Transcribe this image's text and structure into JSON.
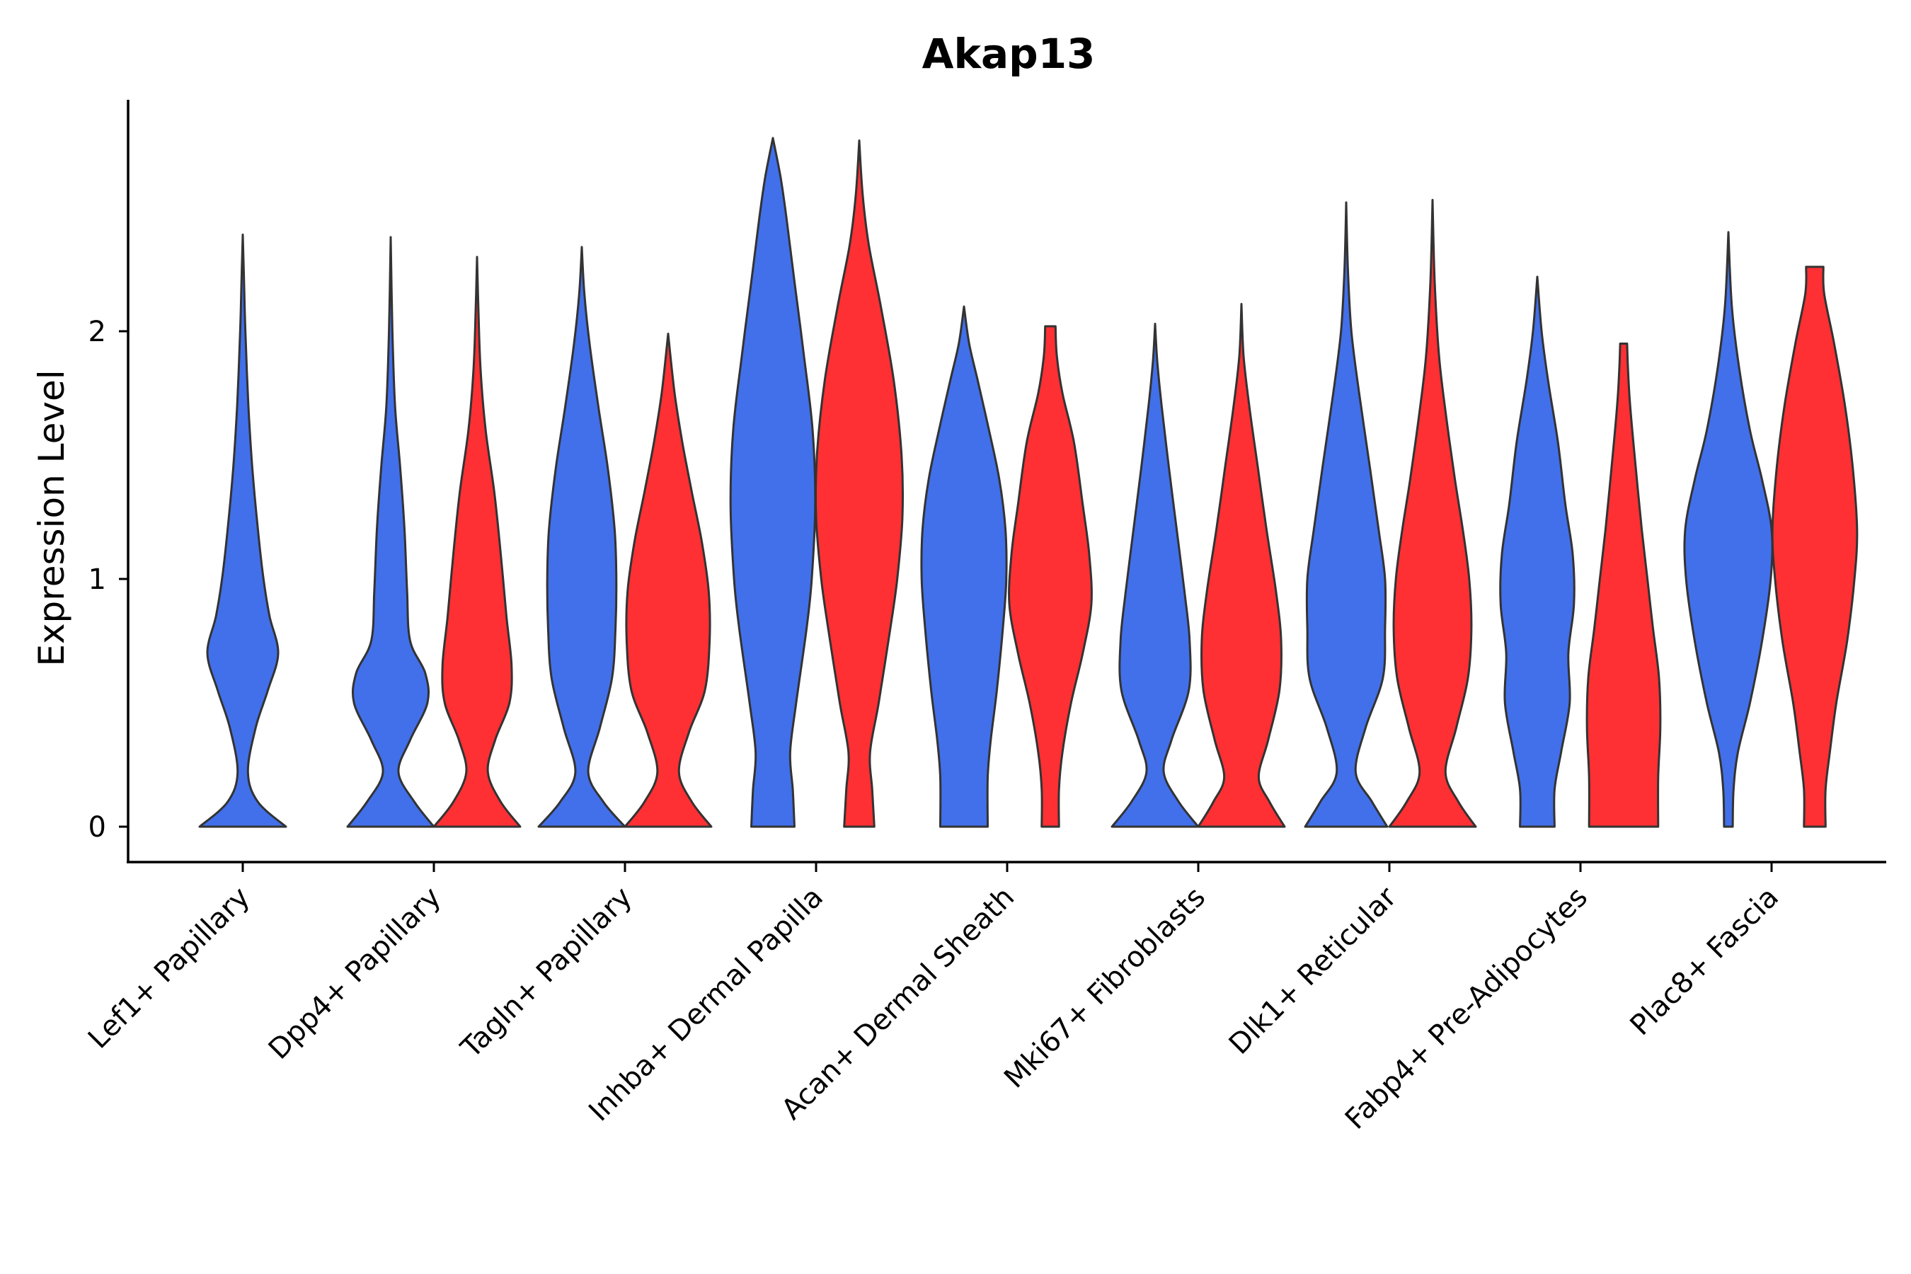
{
  "chart_data": {
    "type": "violin",
    "title": "Akap13",
    "xlabel": "",
    "ylabel": "Expression Level",
    "ylim": [
      -0.14,
      2.94
    ],
    "yticks": [
      0,
      1,
      2
    ],
    "grid": false,
    "legend": "none",
    "colors": {
      "group1": "#4270EB",
      "group2": "#FF3033",
      "outline": "#333333"
    },
    "categories": [
      "Lef1+ Papillary",
      "Dpp4+ Papillary",
      "Tagln+ Papillary",
      "Inhba+ Dermal Papilla",
      "Acan+ Dermal Sheath",
      "Mki67+ Fibroblasts",
      "Dlk1+ Reticular",
      "Fabp4+ Pre-Adipocytes",
      "Plac8+ Fascia"
    ],
    "series": [
      {
        "name": "group1",
        "violins": [
          {
            "max": 2.39,
            "profile": [
              [
                0,
                1.0
              ],
              [
                0.1,
                0.35
              ],
              [
                0.22,
                0.12
              ],
              [
                0.4,
                0.3
              ],
              [
                0.55,
                0.58
              ],
              [
                0.7,
                0.82
              ],
              [
                0.85,
                0.62
              ],
              [
                1.0,
                0.48
              ],
              [
                1.2,
                0.35
              ],
              [
                1.45,
                0.22
              ],
              [
                1.7,
                0.13
              ],
              [
                2.0,
                0.06
              ],
              [
                2.2,
                0.03
              ],
              [
                2.39,
                0.0
              ]
            ]
          },
          {
            "max": 2.38,
            "profile": [
              [
                0,
                1.0
              ],
              [
                0.1,
                0.55
              ],
              [
                0.22,
                0.18
              ],
              [
                0.35,
                0.45
              ],
              [
                0.5,
                0.85
              ],
              [
                0.62,
                0.8
              ],
              [
                0.75,
                0.45
              ],
              [
                0.95,
                0.38
              ],
              [
                1.2,
                0.32
              ],
              [
                1.45,
                0.22
              ],
              [
                1.7,
                0.1
              ],
              [
                2.0,
                0.04
              ],
              [
                2.38,
                0.0
              ]
            ]
          },
          {
            "max": 2.34,
            "profile": [
              [
                0,
                1.0
              ],
              [
                0.1,
                0.5
              ],
              [
                0.22,
                0.15
              ],
              [
                0.4,
                0.42
              ],
              [
                0.6,
                0.7
              ],
              [
                0.8,
                0.78
              ],
              [
                1.0,
                0.8
              ],
              [
                1.2,
                0.76
              ],
              [
                1.45,
                0.6
              ],
              [
                1.7,
                0.38
              ],
              [
                1.95,
                0.18
              ],
              [
                2.15,
                0.06
              ],
              [
                2.34,
                0.0
              ]
            ]
          },
          {
            "max": 2.78,
            "profile": [
              [
                0,
                0.5
              ],
              [
                0.15,
                0.46
              ],
              [
                0.3,
                0.4
              ],
              [
                0.5,
                0.54
              ],
              [
                0.8,
                0.78
              ],
              [
                1.0,
                0.9
              ],
              [
                1.3,
                0.98
              ],
              [
                1.6,
                0.92
              ],
              [
                1.9,
                0.72
              ],
              [
                2.2,
                0.5
              ],
              [
                2.45,
                0.32
              ],
              [
                2.62,
                0.18
              ],
              [
                2.78,
                0.0
              ]
            ]
          },
          {
            "max": 2.1,
            "profile": [
              [
                0,
                0.55
              ],
              [
                0.2,
                0.55
              ],
              [
                0.35,
                0.62
              ],
              [
                0.55,
                0.76
              ],
              [
                0.8,
                0.9
              ],
              [
                1.0,
                0.98
              ],
              [
                1.2,
                0.96
              ],
              [
                1.4,
                0.82
              ],
              [
                1.6,
                0.58
              ],
              [
                1.8,
                0.32
              ],
              [
                1.95,
                0.12
              ],
              [
                2.1,
                0.0
              ]
            ]
          },
          {
            "max": 2.03,
            "profile": [
              [
                0,
                1.0
              ],
              [
                0.1,
                0.55
              ],
              [
                0.22,
                0.2
              ],
              [
                0.35,
                0.38
              ],
              [
                0.55,
                0.78
              ],
              [
                0.75,
                0.8
              ],
              [
                0.95,
                0.68
              ],
              [
                1.2,
                0.5
              ],
              [
                1.45,
                0.32
              ],
              [
                1.7,
                0.15
              ],
              [
                1.88,
                0.05
              ],
              [
                2.03,
                0.0
              ]
            ]
          },
          {
            "max": 2.52,
            "profile": [
              [
                0,
                0.95
              ],
              [
                0.1,
                0.6
              ],
              [
                0.22,
                0.22
              ],
              [
                0.4,
                0.45
              ],
              [
                0.6,
                0.85
              ],
              [
                0.8,
                0.9
              ],
              [
                1.0,
                0.9
              ],
              [
                1.2,
                0.75
              ],
              [
                1.45,
                0.55
              ],
              [
                1.75,
                0.3
              ],
              [
                2.0,
                0.12
              ],
              [
                2.25,
                0.04
              ],
              [
                2.52,
                0.0
              ]
            ]
          },
          {
            "max": 2.22,
            "profile": [
              [
                0,
                0.4
              ],
              [
                0.15,
                0.4
              ],
              [
                0.3,
                0.55
              ],
              [
                0.5,
                0.75
              ],
              [
                0.7,
                0.72
              ],
              [
                0.9,
                0.85
              ],
              [
                1.1,
                0.82
              ],
              [
                1.3,
                0.65
              ],
              [
                1.55,
                0.48
              ],
              [
                1.8,
                0.25
              ],
              [
                2.0,
                0.1
              ],
              [
                2.22,
                0.0
              ]
            ]
          },
          {
            "max": 2.4,
            "profile": [
              [
                0,
                0.1
              ],
              [
                0.15,
                0.12
              ],
              [
                0.3,
                0.22
              ],
              [
                0.5,
                0.5
              ],
              [
                0.75,
                0.78
              ],
              [
                1.0,
                0.98
              ],
              [
                1.2,
                1.0
              ],
              [
                1.4,
                0.78
              ],
              [
                1.6,
                0.5
              ],
              [
                1.85,
                0.25
              ],
              [
                2.1,
                0.08
              ],
              [
                2.4,
                0.0
              ]
            ]
          }
        ]
      },
      {
        "name": "group2",
        "violins": [
          null,
          {
            "max": 2.3,
            "profile": [
              [
                0,
                1.0
              ],
              [
                0.1,
                0.55
              ],
              [
                0.22,
                0.25
              ],
              [
                0.35,
                0.42
              ],
              [
                0.5,
                0.75
              ],
              [
                0.65,
                0.8
              ],
              [
                0.85,
                0.68
              ],
              [
                1.1,
                0.55
              ],
              [
                1.35,
                0.4
              ],
              [
                1.6,
                0.2
              ],
              [
                1.85,
                0.08
              ],
              [
                2.1,
                0.03
              ],
              [
                2.3,
                0.0
              ]
            ]
          },
          {
            "max": 1.99,
            "profile": [
              [
                0,
                1.0
              ],
              [
                0.1,
                0.55
              ],
              [
                0.22,
                0.25
              ],
              [
                0.38,
                0.48
              ],
              [
                0.55,
                0.85
              ],
              [
                0.75,
                0.96
              ],
              [
                0.95,
                0.94
              ],
              [
                1.15,
                0.78
              ],
              [
                1.35,
                0.55
              ],
              [
                1.55,
                0.33
              ],
              [
                1.75,
                0.15
              ],
              [
                1.99,
                0.0
              ]
            ]
          },
          {
            "max": 2.77,
            "profile": [
              [
                0,
                0.35
              ],
              [
                0.15,
                0.3
              ],
              [
                0.3,
                0.25
              ],
              [
                0.5,
                0.45
              ],
              [
                0.8,
                0.72
              ],
              [
                1.0,
                0.88
              ],
              [
                1.25,
                1.0
              ],
              [
                1.5,
                0.98
              ],
              [
                1.8,
                0.8
              ],
              [
                2.1,
                0.5
              ],
              [
                2.35,
                0.22
              ],
              [
                2.55,
                0.08
              ],
              [
                2.77,
                0.0
              ]
            ]
          },
          {
            "max": 2.02,
            "profile": [
              [
                0,
                0.2
              ],
              [
                0.15,
                0.2
              ],
              [
                0.3,
                0.28
              ],
              [
                0.5,
                0.48
              ],
              [
                0.7,
                0.75
              ],
              [
                0.9,
                0.95
              ],
              [
                1.1,
                0.9
              ],
              [
                1.3,
                0.75
              ],
              [
                1.55,
                0.55
              ],
              [
                1.75,
                0.28
              ],
              [
                1.9,
                0.15
              ],
              [
                2.02,
                0.12
              ]
            ]
          },
          {
            "max": 2.11,
            "profile": [
              [
                0,
                1.0
              ],
              [
                0.1,
                0.65
              ],
              [
                0.2,
                0.4
              ],
              [
                0.35,
                0.62
              ],
              [
                0.55,
                0.88
              ],
              [
                0.75,
                0.92
              ],
              [
                0.95,
                0.8
              ],
              [
                1.2,
                0.58
              ],
              [
                1.45,
                0.38
              ],
              [
                1.7,
                0.18
              ],
              [
                1.9,
                0.05
              ],
              [
                2.11,
                0.0
              ]
            ]
          },
          {
            "max": 2.53,
            "profile": [
              [
                0,
                1.0
              ],
              [
                0.1,
                0.6
              ],
              [
                0.22,
                0.3
              ],
              [
                0.4,
                0.55
              ],
              [
                0.6,
                0.82
              ],
              [
                0.8,
                0.9
              ],
              [
                1.0,
                0.85
              ],
              [
                1.2,
                0.7
              ],
              [
                1.4,
                0.52
              ],
              [
                1.65,
                0.32
              ],
              [
                1.9,
                0.15
              ],
              [
                2.2,
                0.05
              ],
              [
                2.53,
                0.0
              ]
            ]
          },
          {
            "max": 1.95,
            "profile": [
              [
                0,
                0.8
              ],
              [
                0.2,
                0.8
              ],
              [
                0.4,
                0.85
              ],
              [
                0.6,
                0.82
              ],
              [
                0.8,
                0.68
              ],
              [
                1.0,
                0.55
              ],
              [
                1.2,
                0.42
              ],
              [
                1.45,
                0.28
              ],
              [
                1.7,
                0.15
              ],
              [
                1.85,
                0.1
              ],
              [
                1.95,
                0.08
              ]
            ]
          },
          {
            "max": 2.26,
            "profile": [
              [
                0,
                0.25
              ],
              [
                0.15,
                0.25
              ],
              [
                0.3,
                0.35
              ],
              [
                0.5,
                0.5
              ],
              [
                0.75,
                0.75
              ],
              [
                1.0,
                0.92
              ],
              [
                1.2,
                0.98
              ],
              [
                1.45,
                0.88
              ],
              [
                1.7,
                0.7
              ],
              [
                1.95,
                0.45
              ],
              [
                2.15,
                0.22
              ],
              [
                2.26,
                0.2
              ]
            ]
          }
        ]
      }
    ]
  }
}
